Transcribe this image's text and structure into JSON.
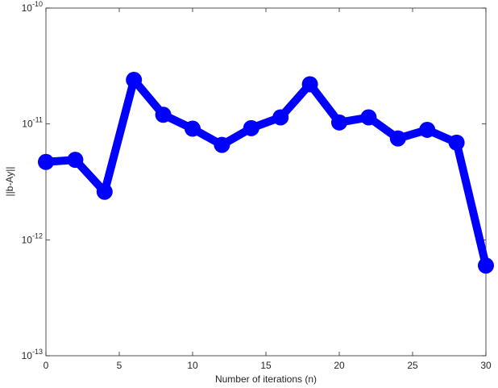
{
  "chart_data": {
    "type": "line",
    "xlabel": "Number of iterations (n)",
    "ylabel": "||b-Ay||",
    "x": [
      0,
      2,
      4,
      6,
      8,
      10,
      12,
      14,
      16,
      18,
      20,
      22,
      24,
      26,
      28,
      30
    ],
    "series": [
      {
        "name": "||b-Ay||",
        "color": "#0000ff",
        "values": [
          4.7e-12,
          4.9e-12,
          2.6e-12,
          2.4e-11,
          1.2e-11,
          9.1e-12,
          6.6e-12,
          9.2e-12,
          1.14e-11,
          2.2e-11,
          1.03e-11,
          1.14e-11,
          7.5e-12,
          8.9e-12,
          6.9e-12,
          6e-13
        ]
      }
    ],
    "xlim": [
      0,
      30
    ],
    "xticks": [
      0,
      5,
      10,
      15,
      20,
      25,
      30
    ],
    "ylim": [
      1e-13,
      1e-10
    ],
    "ylog": true,
    "yticks": [
      {
        "value": 1e-13,
        "label": "10^-13"
      },
      {
        "value": 1e-12,
        "label": "10^-12"
      },
      {
        "value": 1e-11,
        "label": "10^-11"
      },
      {
        "value": 1e-10,
        "label": "10^-10"
      }
    ],
    "grid": false
  }
}
